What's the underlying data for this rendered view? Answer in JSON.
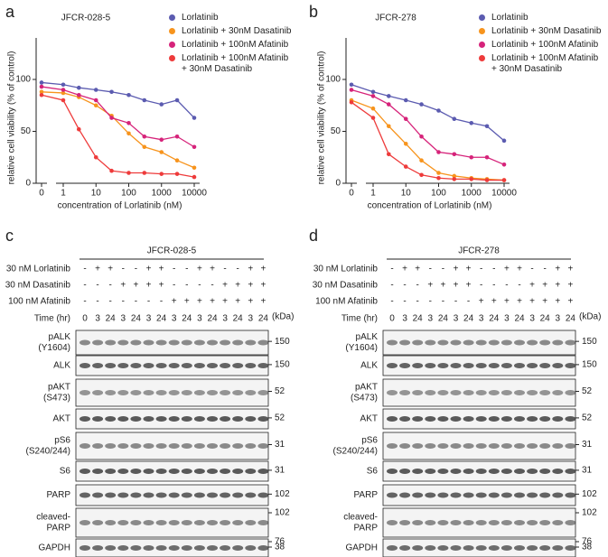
{
  "panels": [
    "a",
    "b",
    "c",
    "d"
  ],
  "chart_data": [
    {
      "type": "line",
      "title": "JFCR-028-5",
      "xscale": "log",
      "xlabel": "concentration of Lorlatinib (nM)",
      "ylabel": "relative cell viability (% of control)",
      "x": [
        0,
        1,
        3,
        10,
        30,
        100,
        300,
        1000,
        3000,
        10000
      ],
      "xlim": [
        0,
        10000
      ],
      "xticks": [
        0,
        1,
        10,
        100,
        1000,
        10000
      ],
      "ylim": [
        0,
        140
      ],
      "yticks": [
        0,
        50,
        100
      ],
      "series": [
        {
          "name": "Lorlatinib",
          "color": "#5b5bb0",
          "values": [
            97,
            95,
            92,
            90,
            88,
            85,
            80,
            76,
            80,
            63
          ]
        },
        {
          "name": "Lorlatinib + 30nM Dasatinib",
          "color": "#f7941d",
          "values": [
            88,
            87,
            83,
            75,
            65,
            48,
            35,
            30,
            22,
            15
          ]
        },
        {
          "name": "Lorlatinib + 100nM Afatinib",
          "color": "#d6237a",
          "values": [
            93,
            90,
            85,
            80,
            63,
            58,
            45,
            42,
            45,
            35
          ]
        },
        {
          "name": "Lorlatinib + 100nM Afatinib + 30nM Dasatinib",
          "color": "#ee3b3b",
          "values": [
            85,
            80,
            52,
            25,
            12,
            10,
            10,
            9,
            9,
            6
          ]
        }
      ]
    },
    {
      "type": "line",
      "title": "JFCR-278",
      "xscale": "log",
      "xlabel": "concentration of Lorlatinib (nM)",
      "ylabel": "relative cell viability (% of control)",
      "x": [
        0,
        1,
        3,
        10,
        30,
        100,
        300,
        1000,
        3000,
        10000
      ],
      "xlim": [
        0,
        10000
      ],
      "xticks": [
        0,
        1,
        10,
        100,
        1000,
        10000
      ],
      "ylim": [
        0,
        140
      ],
      "yticks": [
        0,
        50,
        100
      ],
      "series": [
        {
          "name": "Lorlatinib",
          "color": "#5b5bb0",
          "values": [
            95,
            88,
            84,
            80,
            76,
            70,
            62,
            58,
            55,
            41
          ]
        },
        {
          "name": "Lorlatinib + 30nM Dasatinib",
          "color": "#f7941d",
          "values": [
            80,
            72,
            55,
            38,
            22,
            10,
            7,
            5,
            4,
            3
          ]
        },
        {
          "name": "Lorlatinib + 100nM Afatinib",
          "color": "#d6237a",
          "values": [
            90,
            84,
            76,
            62,
            45,
            30,
            28,
            25,
            25,
            18
          ]
        },
        {
          "name": "Lorlatinib + 100nM Afatinib + 30nM Dasatinib",
          "color": "#ee3b3b",
          "values": [
            78,
            63,
            28,
            16,
            8,
            5,
            4,
            4,
            3,
            3
          ]
        }
      ]
    }
  ],
  "blots": [
    {
      "title": "JFCR-028-5",
      "treatments": [
        {
          "label": "30 nM Lorlatinib",
          "signs": [
            "-",
            "+",
            "+",
            "-",
            "-",
            "+",
            "+",
            "-",
            "-",
            "+",
            "+",
            "-",
            "-",
            "+",
            "+"
          ]
        },
        {
          "label": "30 nM Dasatinib",
          "signs": [
            "-",
            "-",
            "-",
            "+",
            "+",
            "+",
            "+",
            "-",
            "-",
            "-",
            "-",
            "+",
            "+",
            "+",
            "+"
          ]
        },
        {
          "label": "100 nM Afatinib",
          "signs": [
            "-",
            "-",
            "-",
            "-",
            "-",
            "-",
            "-",
            "+",
            "+",
            "+",
            "+",
            "+",
            "+",
            "+",
            "+"
          ]
        }
      ],
      "time_label": "Time (hr)",
      "times": [
        0,
        3,
        24,
        3,
        24,
        3,
        24,
        3,
        24,
        3,
        24,
        3,
        24,
        3,
        24
      ],
      "unit_label": "(kDa)",
      "rows": [
        {
          "label": [
            "pALK",
            "(Y1604)"
          ],
          "markers": [
            150
          ]
        },
        {
          "label": [
            "ALK"
          ],
          "markers": [
            150
          ]
        },
        {
          "label": [
            "pAKT",
            "(S473)"
          ],
          "markers": [
            52
          ]
        },
        {
          "label": [
            "AKT"
          ],
          "markers": [
            52
          ]
        },
        {
          "label": [
            "pS6",
            "(S240/244)"
          ],
          "markers": [
            31
          ]
        },
        {
          "label": [
            "S6"
          ],
          "markers": [
            31
          ]
        },
        {
          "label": [
            "PARP"
          ],
          "markers": [
            102
          ]
        },
        {
          "label": [
            "cleaved-",
            "PARP"
          ],
          "markers": [
            102,
            76
          ]
        },
        {
          "label": [
            "GAPDH"
          ],
          "markers": [
            38
          ]
        }
      ]
    },
    {
      "title": "JFCR-278",
      "treatments": [
        {
          "label": "30 nM Lorlatinib",
          "signs": [
            "-",
            "+",
            "+",
            "-",
            "-",
            "+",
            "+",
            "-",
            "-",
            "+",
            "+",
            "-",
            "-",
            "+",
            "+"
          ]
        },
        {
          "label": "30 nM Dasatinib",
          "signs": [
            "-",
            "-",
            "-",
            "+",
            "+",
            "+",
            "+",
            "-",
            "-",
            "-",
            "-",
            "+",
            "+",
            "+",
            "+"
          ]
        },
        {
          "label": "100 nM Afatinib",
          "signs": [
            "-",
            "-",
            "-",
            "-",
            "-",
            "-",
            "-",
            "+",
            "+",
            "+",
            "+",
            "+",
            "+",
            "+",
            "+"
          ]
        }
      ],
      "time_label": "Time (hr)",
      "times": [
        0,
        3,
        24,
        3,
        24,
        3,
        24,
        3,
        24,
        3,
        24,
        3,
        24,
        3,
        24
      ],
      "unit_label": "(kDa)",
      "rows": [
        {
          "label": [
            "pALK",
            "(Y1604)"
          ],
          "markers": [
            150
          ]
        },
        {
          "label": [
            "ALK"
          ],
          "markers": [
            150
          ]
        },
        {
          "label": [
            "pAKT",
            "(S473)"
          ],
          "markers": [
            52
          ]
        },
        {
          "label": [
            "AKT"
          ],
          "markers": [
            52
          ]
        },
        {
          "label": [
            "pS6",
            "(S240/244)"
          ],
          "markers": [
            31
          ]
        },
        {
          "label": [
            "S6"
          ],
          "markers": [
            31
          ]
        },
        {
          "label": [
            "PARP"
          ],
          "markers": [
            102
          ]
        },
        {
          "label": [
            "cleaved-",
            "PARP"
          ],
          "markers": [
            102,
            76
          ]
        },
        {
          "label": [
            "GAPDH"
          ],
          "markers": [
            38
          ]
        }
      ]
    }
  ]
}
